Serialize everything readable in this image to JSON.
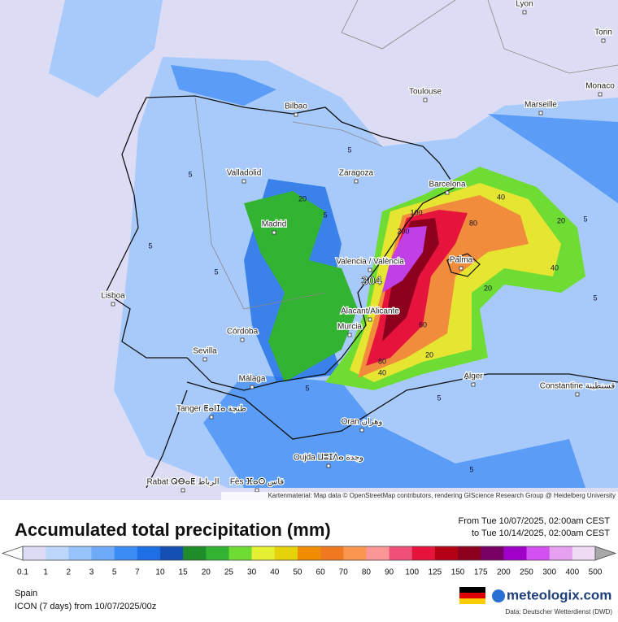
{
  "map": {
    "cities": [
      "Lyon",
      "Torin",
      "Monaco",
      "Toulouse",
      "Marseille",
      "Bilbao",
      "Zaragoza",
      "Valladolid",
      "Barcelona",
      "Madrid",
      "Valencia / València",
      "Palma",
      "Lisboa",
      "Alacant/Alicante",
      "Murcia",
      "Córdoba",
      "Sevilla",
      "Málaga",
      "Alger",
      "Constantine قسنطينة",
      "Tanger ⵟⴰⵏⵊⴰ طنجة",
      "Oran وهران",
      "Oujda ⵡⵓⵊⴷⴰ وجدة",
      "Rabat ⵕⴱⴰⵟ الرباط",
      "Fès ⴼⴰⵙ فاس"
    ],
    "contour_labels": [
      "5",
      "5",
      "5",
      "5",
      "5",
      "5",
      "5",
      "5",
      "20",
      "20",
      "20",
      "40",
      "40",
      "40",
      "60",
      "80",
      "80",
      "100",
      "200",
      "20",
      "5",
      "5"
    ],
    "max_label": "304",
    "attribution": "Kartenmaterial: Map data © OpenStreetMap contributors, rendering GIScience Research Group @ Heidelberg University"
  },
  "legend": {
    "title": "Accumulated total precipitation (mm)",
    "from": "From Tue 10/07/2025, 02:00am CEST",
    "to": "to Tue 10/14/2025, 02:00am CEST",
    "scale": [
      "0.1",
      "1",
      "2",
      "3",
      "5",
      "7",
      "10",
      "15",
      "20",
      "25",
      "30",
      "40",
      "50",
      "60",
      "70",
      "80",
      "90",
      "100",
      "125",
      "150",
      "175",
      "200",
      "250",
      "300",
      "400",
      "500"
    ],
    "colors": [
      "#dcdcf5",
      "#bcd6fa",
      "#96c4fa",
      "#6eaaf8",
      "#3c8cf5",
      "#1e6ee6",
      "#1450b4",
      "#1e8c28",
      "#32b432",
      "#6edc32",
      "#e6f032",
      "#e6d20a",
      "#f08c00",
      "#f0781e",
      "#fa9650",
      "#fa9696",
      "#f05078",
      "#e6143c",
      "#b40014",
      "#8c001e",
      "#780064",
      "#a000c8",
      "#d250f0",
      "#e6a0f0",
      "#f0dcf5"
    ],
    "under_color": "#ffffff",
    "over_color": "#a8a8a8"
  },
  "footer": {
    "region": "Spain",
    "model": "ICON (7 days) from 10/07/2025/00z",
    "logo": "meteologix.com",
    "source": "Data: Deutscher Wetterdienst (DWD)"
  }
}
